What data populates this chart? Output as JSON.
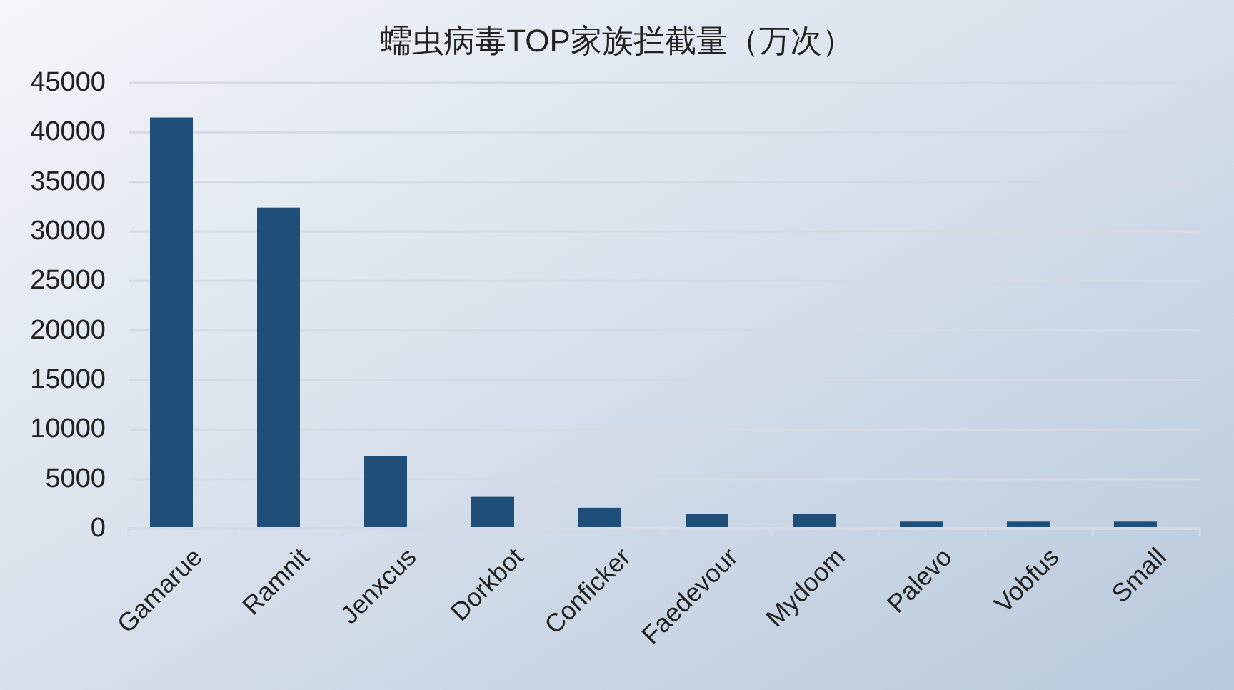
{
  "chart_data": {
    "type": "bar",
    "title": "蠕虫病毒TOP家族拦截量（万次）",
    "categories": [
      "Gamarue",
      "Ramnit",
      "Jenxcus",
      "Dorkbot",
      "Conficker",
      "Faedevour",
      "Mydoom",
      "Palevo",
      "Vobfus",
      "Small"
    ],
    "values": [
      41500,
      32400,
      7300,
      3200,
      2100,
      1500,
      1500,
      700,
      700,
      700
    ],
    "color": "#1f4e79",
    "ylim": [
      0,
      45000
    ],
    "yticks": [
      0,
      5000,
      10000,
      15000,
      20000,
      25000,
      30000,
      35000,
      40000,
      45000
    ],
    "grid": "y"
  }
}
